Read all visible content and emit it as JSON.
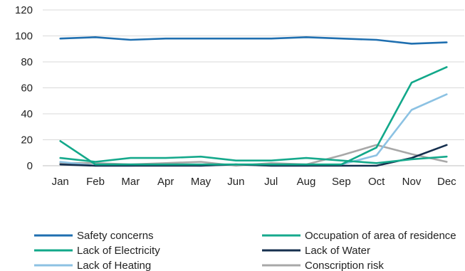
{
  "chart_data": {
    "type": "line",
    "categories": [
      "Jan",
      "Feb",
      "Mar",
      "Apr",
      "May",
      "Jun",
      "Jul",
      "Aug",
      "Sep",
      "Oct",
      "Nov",
      "Dec"
    ],
    "ylim": [
      0,
      120
    ],
    "yticks": [
      "0",
      "20",
      "40",
      "60",
      "80",
      "100",
      "120"
    ],
    "grid": true,
    "legend_position": "bottom",
    "series": [
      {
        "name": "Safety concerns",
        "color": "#1F6FB0",
        "values": [
          98,
          99,
          97,
          98,
          98,
          98,
          98,
          99,
          98,
          97,
          94,
          95
        ]
      },
      {
        "name": "Occupation of area of residence",
        "color": "#16A98C",
        "values": [
          6,
          3,
          6,
          6,
          7,
          4,
          4,
          6,
          4,
          2,
          5,
          7
        ]
      },
      {
        "name": "Lack of Electricity",
        "color": "#12A88A",
        "values": [
          19,
          1,
          1,
          1,
          1,
          1,
          1,
          1,
          1,
          14,
          64,
          76
        ]
      },
      {
        "name": "Lack of Water",
        "color": "#152F4E",
        "values": [
          1,
          0,
          0,
          0,
          0,
          1,
          0,
          0,
          0,
          0,
          6,
          16
        ]
      },
      {
        "name": "Lack of Heating",
        "color": "#8CC2E3",
        "values": [
          3,
          0,
          0,
          1,
          0,
          1,
          0,
          0,
          1,
          8,
          43,
          55
        ]
      },
      {
        "name": "Conscription risk",
        "color": "#A8A8A8",
        "values": [
          2,
          2,
          1,
          2,
          3,
          0,
          2,
          1,
          8,
          16,
          9,
          3
        ]
      }
    ]
  }
}
